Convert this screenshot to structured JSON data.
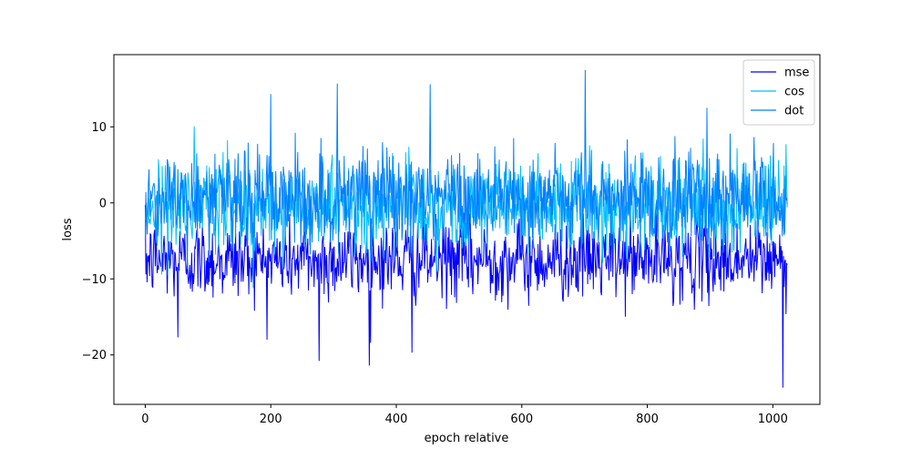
{
  "chart_data": {
    "type": "line",
    "title": "",
    "xlabel": "epoch relative",
    "ylabel": "loss",
    "xlim": [
      -50,
      1075
    ],
    "ylim": [
      -26.5,
      19.5
    ],
    "xticks": [
      0,
      200,
      400,
      600,
      800,
      1000
    ],
    "yticks": [
      -20,
      -10,
      0,
      10
    ],
    "ytick_labels": [
      "−20",
      "−10",
      "0",
      "10"
    ],
    "n_points": 1024,
    "legend_position": "upper right",
    "grid": false,
    "series": [
      {
        "name": "mse",
        "color": "#0000ff",
        "mean": -7.5,
        "std": 2.6,
        "peaks": [
          [
            52,
            -17.7
          ],
          [
            277,
            -20.8
          ],
          [
            357,
            -21.4
          ],
          [
            425,
            -19.7
          ],
          [
            1016,
            -24.3
          ]
        ]
      },
      {
        "name": "cos",
        "color": "#00bfff",
        "mean": -0.3,
        "std": 3.0,
        "peaks": []
      },
      {
        "name": "dot",
        "color": "#0080ff",
        "mean": 0.6,
        "std": 3.3,
        "peaks": [
          [
            200,
            14.3
          ],
          [
            306,
            15.7
          ],
          [
            454,
            15.6
          ],
          [
            701,
            17.5
          ],
          [
            895,
            12.5
          ]
        ]
      }
    ]
  }
}
